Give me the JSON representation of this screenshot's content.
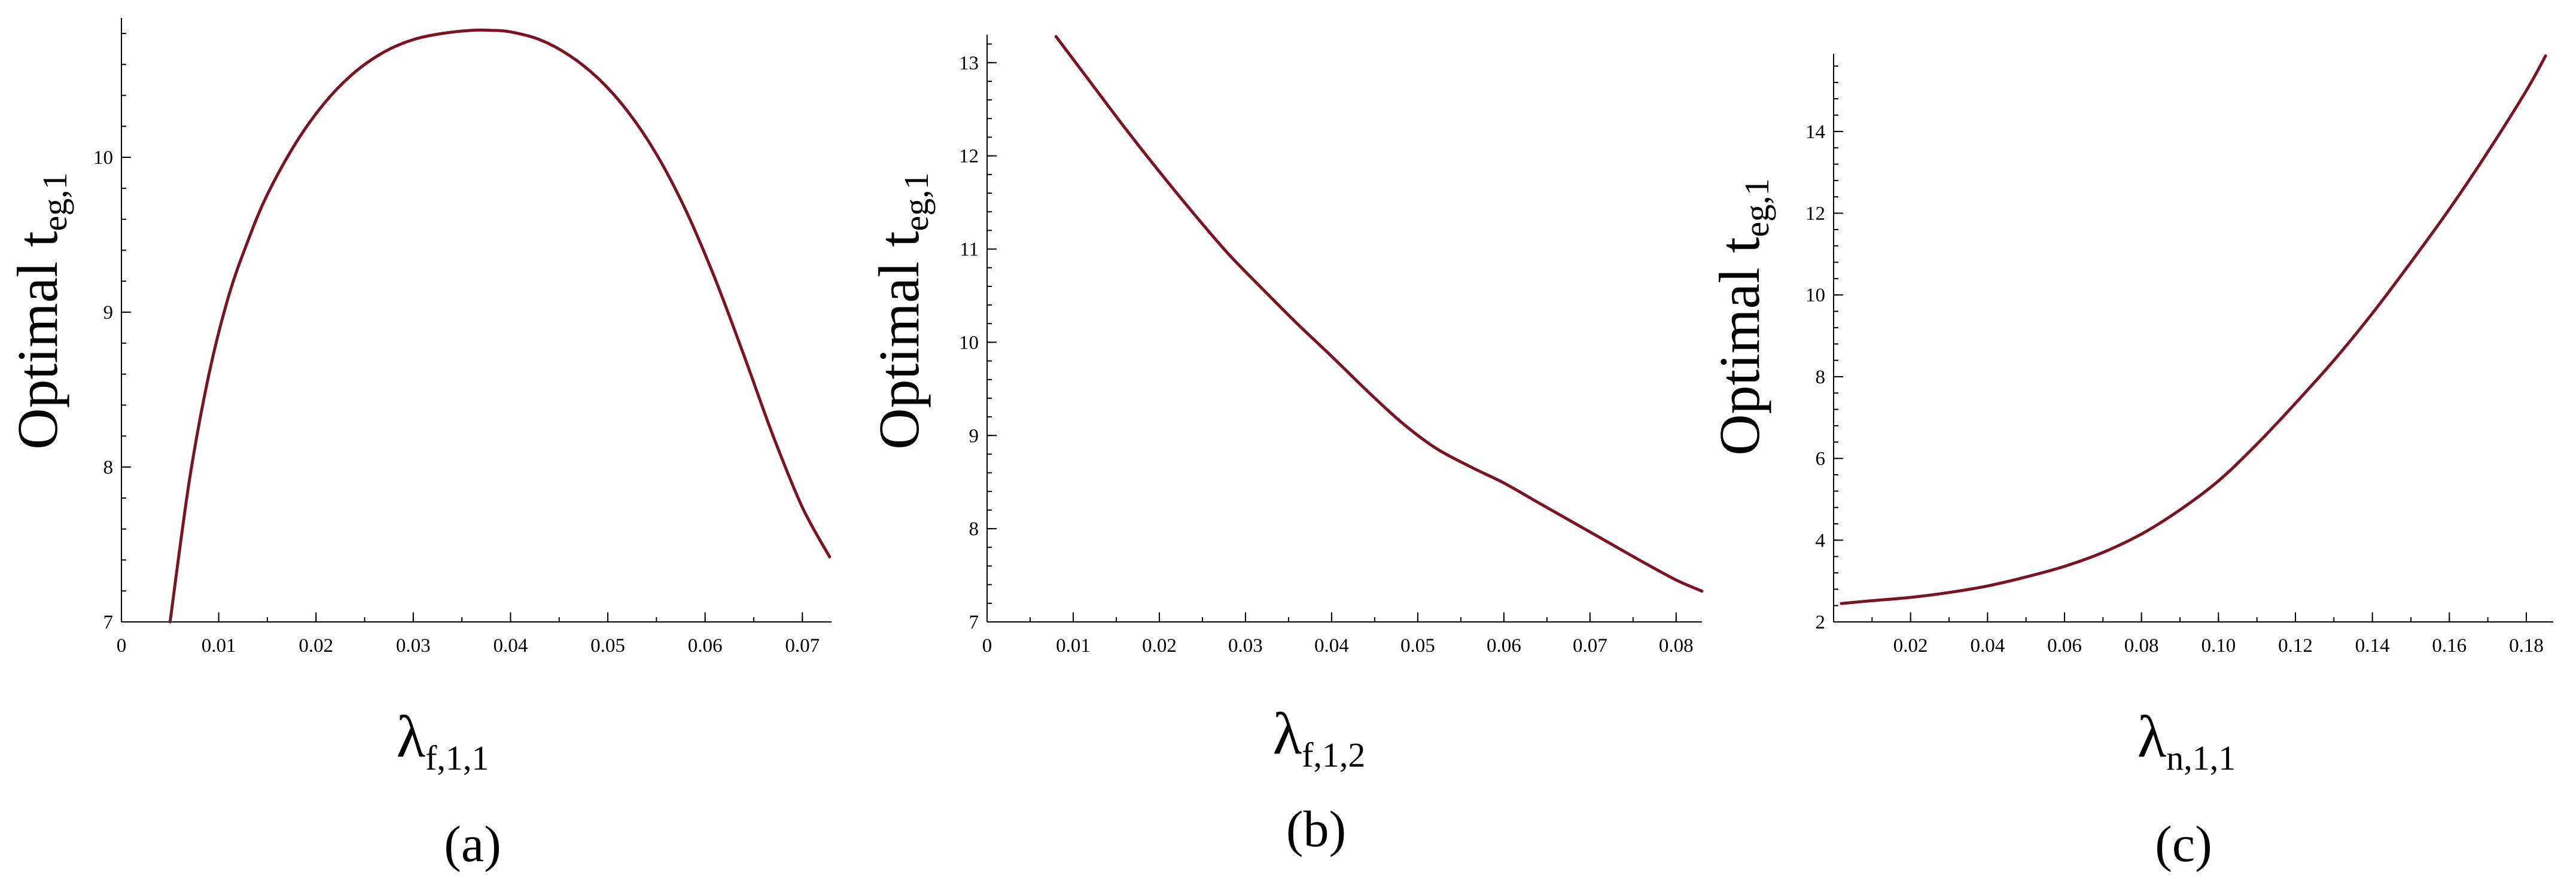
{
  "colors": {
    "curve": "#7a1323",
    "axis": "#000000",
    "background": "#ffffff"
  },
  "chart_data": [
    {
      "type": "line",
      "panel_label": "(a)",
      "ylabel_main": "Optimal t",
      "ylabel_sub": "eg,1",
      "xlabel_main": "λ",
      "xlabel_sub": "f,1,1",
      "xlim": [
        0,
        0.073
      ],
      "ylim": [
        7,
        10.9
      ],
      "xticks": [
        0,
        0.01,
        0.02,
        0.03,
        0.04,
        0.05,
        0.06,
        0.07
      ],
      "xtick_labels": [
        "0",
        "0.01",
        "0.02",
        "0.03",
        "0.04",
        "0.05",
        "0.06",
        "0.07"
      ],
      "yticks": [
        7,
        8,
        9,
        10
      ],
      "ytick_labels": [
        "7",
        "8",
        "9",
        "10"
      ],
      "series": [
        {
          "x": [
            0.005,
            0.007,
            0.009,
            0.011,
            0.013,
            0.015,
            0.018,
            0.021,
            0.024,
            0.027,
            0.03,
            0.033,
            0.036,
            0.038,
            0.04,
            0.043,
            0.046,
            0.049,
            0.052,
            0.055,
            0.058,
            0.061,
            0.064,
            0.067,
            0.07,
            0.0728
          ],
          "y": [
            7.0,
            7.92,
            8.6,
            9.1,
            9.46,
            9.76,
            10.1,
            10.36,
            10.55,
            10.68,
            10.76,
            10.8,
            10.82,
            10.82,
            10.81,
            10.76,
            10.66,
            10.51,
            10.3,
            10.02,
            9.66,
            9.22,
            8.72,
            8.2,
            7.74,
            7.42
          ]
        }
      ]
    },
    {
      "type": "line",
      "panel_label": "(b)",
      "ylabel_main": "Optimal t",
      "ylabel_sub": "eg,1",
      "xlabel_main": "λ",
      "xlabel_sub": "f,1,2",
      "xlim": [
        0,
        0.083
      ],
      "ylim": [
        7,
        13.3
      ],
      "xticks": [
        0,
        0.01,
        0.02,
        0.03,
        0.04,
        0.05,
        0.06,
        0.07,
        0.08
      ],
      "xtick_labels": [
        "0",
        "0.01",
        "0.02",
        "0.03",
        "0.04",
        "0.05",
        "0.06",
        "0.07",
        "0.08"
      ],
      "yticks": [
        7,
        8,
        9,
        10,
        11,
        12,
        13
      ],
      "ytick_labels": [
        "7",
        "8",
        "9",
        "10",
        "11",
        "12",
        "13"
      ],
      "series": [
        {
          "x": [
            0.008,
            0.012,
            0.016,
            0.02,
            0.024,
            0.028,
            0.032,
            0.036,
            0.04,
            0.044,
            0.048,
            0.052,
            0.056,
            0.06,
            0.064,
            0.068,
            0.072,
            0.076,
            0.08,
            0.083
          ],
          "y": [
            13.28,
            12.79,
            12.3,
            11.83,
            11.38,
            10.95,
            10.57,
            10.2,
            9.85,
            9.49,
            9.15,
            8.87,
            8.67,
            8.49,
            8.28,
            8.07,
            7.86,
            7.65,
            7.45,
            7.33
          ]
        }
      ]
    },
    {
      "type": "line",
      "panel_label": "(c)",
      "ylabel_main": "Optimal t",
      "ylabel_sub": "eg,1",
      "xlabel_main": "λ",
      "xlabel_sub": "n,1,1",
      "xlim": [
        0,
        0.187
      ],
      "ylim": [
        2,
        15.9
      ],
      "xticks": [
        0.02,
        0.04,
        0.06,
        0.08,
        0.1,
        0.12,
        0.14,
        0.16,
        0.18
      ],
      "xtick_labels": [
        "0.02",
        "0.04",
        "0.06",
        "0.08",
        "0.10",
        "0.12",
        "0.14",
        "0.16",
        "0.18"
      ],
      "yticks": [
        2,
        4,
        6,
        8,
        10,
        12,
        14
      ],
      "ytick_labels": [
        "2",
        "4",
        "6",
        "8",
        "10",
        "12",
        "14"
      ],
      "series": [
        {
          "x": [
            0.002,
            0.01,
            0.02,
            0.03,
            0.04,
            0.05,
            0.06,
            0.07,
            0.08,
            0.09,
            0.1,
            0.11,
            0.12,
            0.13,
            0.14,
            0.15,
            0.16,
            0.17,
            0.18,
            0.185
          ],
          "y": [
            2.45,
            2.52,
            2.6,
            2.72,
            2.88,
            3.1,
            3.36,
            3.7,
            4.15,
            4.74,
            5.45,
            6.35,
            7.35,
            8.4,
            9.55,
            10.8,
            12.1,
            13.5,
            15.0,
            15.85
          ]
        }
      ]
    }
  ]
}
